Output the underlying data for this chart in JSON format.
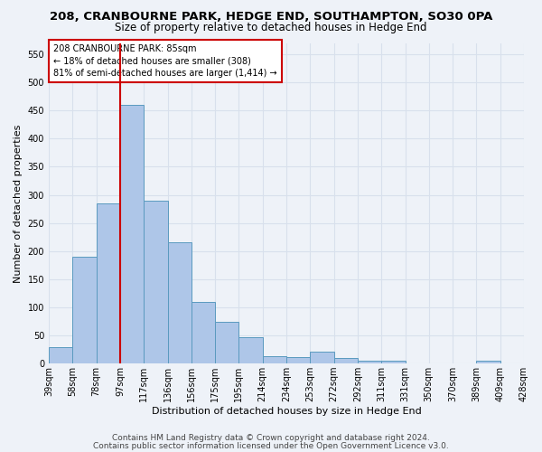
{
  "title": "208, CRANBOURNE PARK, HEDGE END, SOUTHAMPTON, SO30 0PA",
  "subtitle": "Size of property relative to detached houses in Hedge End",
  "xlabel": "Distribution of detached houses by size in Hedge End",
  "ylabel": "Number of detached properties",
  "bar_values": [
    30,
    190,
    285,
    460,
    290,
    215,
    110,
    75,
    47,
    13,
    12,
    21,
    10,
    5,
    5,
    0,
    0,
    0,
    5
  ],
  "bin_labels": [
    "39sqm",
    "58sqm",
    "78sqm",
    "97sqm",
    "117sqm",
    "136sqm",
    "156sqm",
    "175sqm",
    "195sqm",
    "214sqm",
    "234sqm",
    "253sqm",
    "272sqm",
    "292sqm",
    "311sqm",
    "331sqm",
    "350sqm",
    "370sqm",
    "389sqm",
    "409sqm",
    "428sqm"
  ],
  "n_bins": 19,
  "bar_color": "#aec6e8",
  "bar_edge_color": "#5a9abf",
  "vline_bin_index": 3,
  "vline_color": "#cc0000",
  "annotation_box_color": "#cc0000",
  "property_label": "208 CRANBOURNE PARK: 85sqm",
  "annotation_line1": "← 18% of detached houses are smaller (308)",
  "annotation_line2": "81% of semi-detached houses are larger (1,414) →",
  "ylim": [
    0,
    570
  ],
  "yticks": [
    0,
    50,
    100,
    150,
    200,
    250,
    300,
    350,
    400,
    450,
    500,
    550
  ],
  "footer1": "Contains HM Land Registry data © Crown copyright and database right 2024.",
  "footer2": "Contains public sector information licensed under the Open Government Licence v3.0.",
  "background_color": "#eef2f8",
  "grid_color": "#d8e0ec",
  "title_fontsize": 9.5,
  "subtitle_fontsize": 8.5,
  "axis_label_fontsize": 8,
  "tick_fontsize": 7,
  "annot_fontsize": 7,
  "footer_fontsize": 6.5
}
